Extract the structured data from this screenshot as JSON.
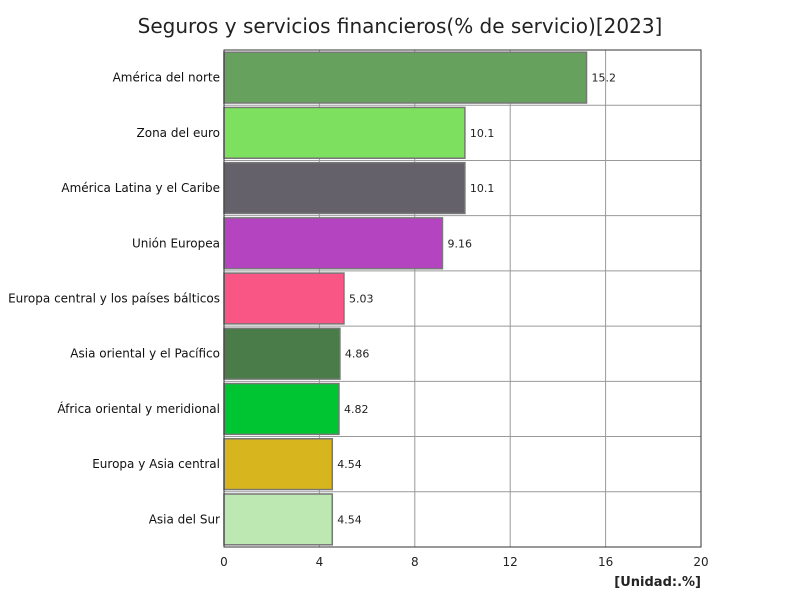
{
  "chart_data": {
    "type": "bar",
    "orientation": "horizontal",
    "title": "Seguros y servicios financieros(% de servicio)[2023]",
    "unit": "[Unidad:.%]",
    "categories": [
      "América del norte",
      "Zona del euro",
      "América Latina y el Caribe",
      "Unión Europea",
      "Europa central y los países bálticos",
      "Asia oriental y el Pacífico",
      "África oriental y meridional",
      "Europa y Asia central",
      "Asia del Sur"
    ],
    "values": [
      15.2,
      10.1,
      10.1,
      9.16,
      5.03,
      4.86,
      4.82,
      4.54,
      4.54
    ],
    "value_labels": [
      "15.2",
      "10.1",
      "10.1",
      "9.16",
      "5.03",
      "4.86",
      "4.82",
      "4.54",
      "4.54"
    ],
    "colors": [
      "#66a15e",
      "#7de05e",
      "#65616b",
      "#b444c0",
      "#fa5685",
      "#4a7c4a",
      "#00c532",
      "#d7b51e",
      "#bde8b2"
    ],
    "xlim": [
      0,
      20
    ],
    "xticks": [
      0,
      4,
      8,
      12,
      16,
      20
    ],
    "grid": true
  }
}
